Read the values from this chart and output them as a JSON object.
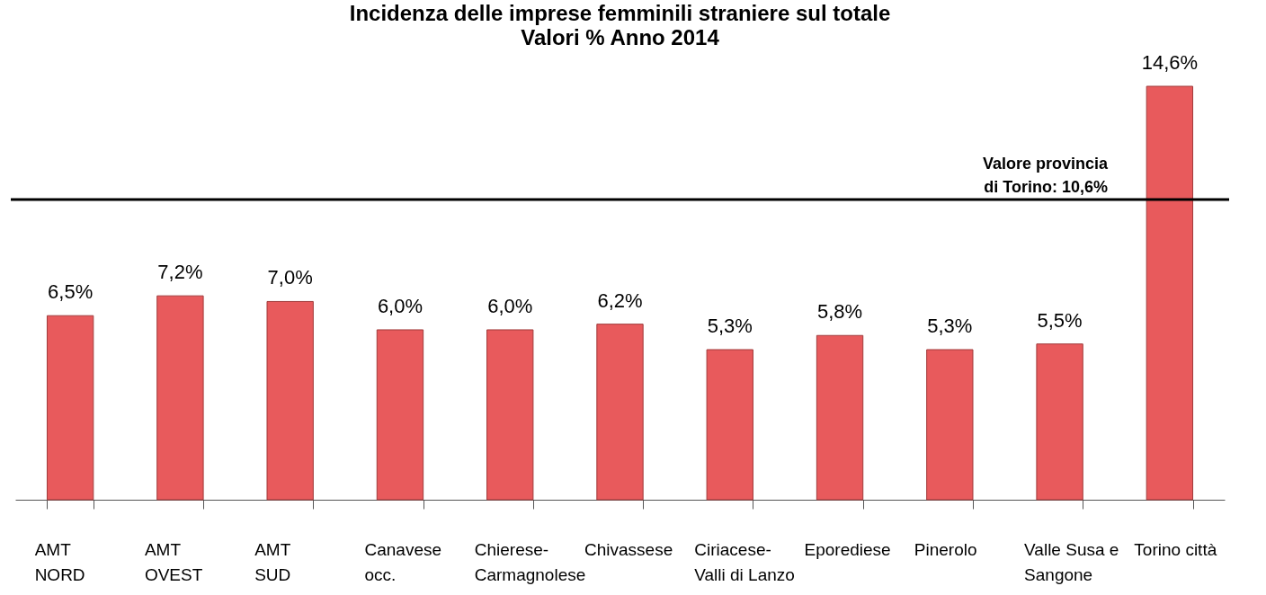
{
  "chart_data": {
    "type": "bar",
    "title": "Incidenza delle imprese femminili straniere sul totale",
    "subtitle": "Valori % Anno 2014",
    "categories": [
      "AMT\nNORD",
      "AMT\nOVEST",
      "AMT\nSUD",
      "Canavese\nocc.",
      "Chierese-\nCarmagnolese",
      "Chivassese",
      "Ciriacese-\nValli di Lanzo",
      "Eporediese",
      "Pinerolo",
      "Valle Susa e\nSangone",
      "Torino città"
    ],
    "values": [
      6.5,
      7.2,
      7.0,
      6.0,
      6.0,
      6.2,
      5.3,
      5.8,
      5.3,
      5.5,
      14.6
    ],
    "value_labels": [
      "6,5%",
      "7,2%",
      "7,0%",
      "6,0%",
      "6,0%",
      "6,2%",
      "5,3%",
      "5,8%",
      "5,3%",
      "5,5%",
      "14,6%"
    ],
    "color": "#e85a5c",
    "ref_lines": [
      {
        "axis": "y",
        "value": 10.6,
        "label": "Valore provincia\n di Torino: 10,6%",
        "color": "#000000"
      }
    ],
    "grid": false
  }
}
